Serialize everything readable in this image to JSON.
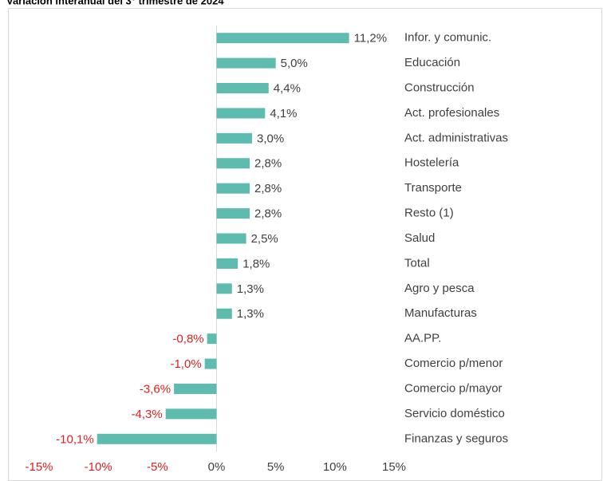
{
  "chart_data": {
    "type": "hbar",
    "title": "Variación interanual del 3° trimestre de 2024",
    "categories": [
      "Infor. y comunic.",
      "Educación",
      "Construcción",
      "Act. profesionales",
      "Act. administrativas",
      "Hostelería",
      "Transporte",
      "Resto (1)",
      "Salud",
      "Total",
      "Agro y pesca",
      "Manufacturas",
      "AA.PP.",
      "Comercio p/menor",
      "Comercio p/mayor",
      "Servicio doméstico",
      "Finanzas y seguros"
    ],
    "values": [
      11.2,
      5.0,
      4.4,
      4.1,
      3.0,
      2.8,
      2.8,
      2.8,
      2.5,
      1.8,
      1.3,
      1.3,
      -0.8,
      -1.0,
      -3.6,
      -4.3,
      -10.1
    ],
    "value_labels": [
      "11,2%",
      "5,0%",
      "4,4%",
      "4,1%",
      "3,0%",
      "2,8%",
      "2,8%",
      "2,8%",
      "2,5%",
      "1,8%",
      "1,3%",
      "1,3%",
      "-0,8%",
      "-1,0%",
      "-3,6%",
      "-4,3%",
      "-10,1%"
    ],
    "color": "#5dbbb0",
    "negative_label_color": "#e02020",
    "xlim": [
      -15,
      15
    ],
    "xticks": [
      {
        "value": -15,
        "label": "-15%"
      },
      {
        "value": -10,
        "label": "-10%"
      },
      {
        "value": -5,
        "label": "-5%"
      },
      {
        "value": 0,
        "label": "0%"
      },
      {
        "value": 5,
        "label": "5%"
      },
      {
        "value": 10,
        "label": "10%"
      },
      {
        "value": 15,
        "label": "15%"
      }
    ]
  }
}
